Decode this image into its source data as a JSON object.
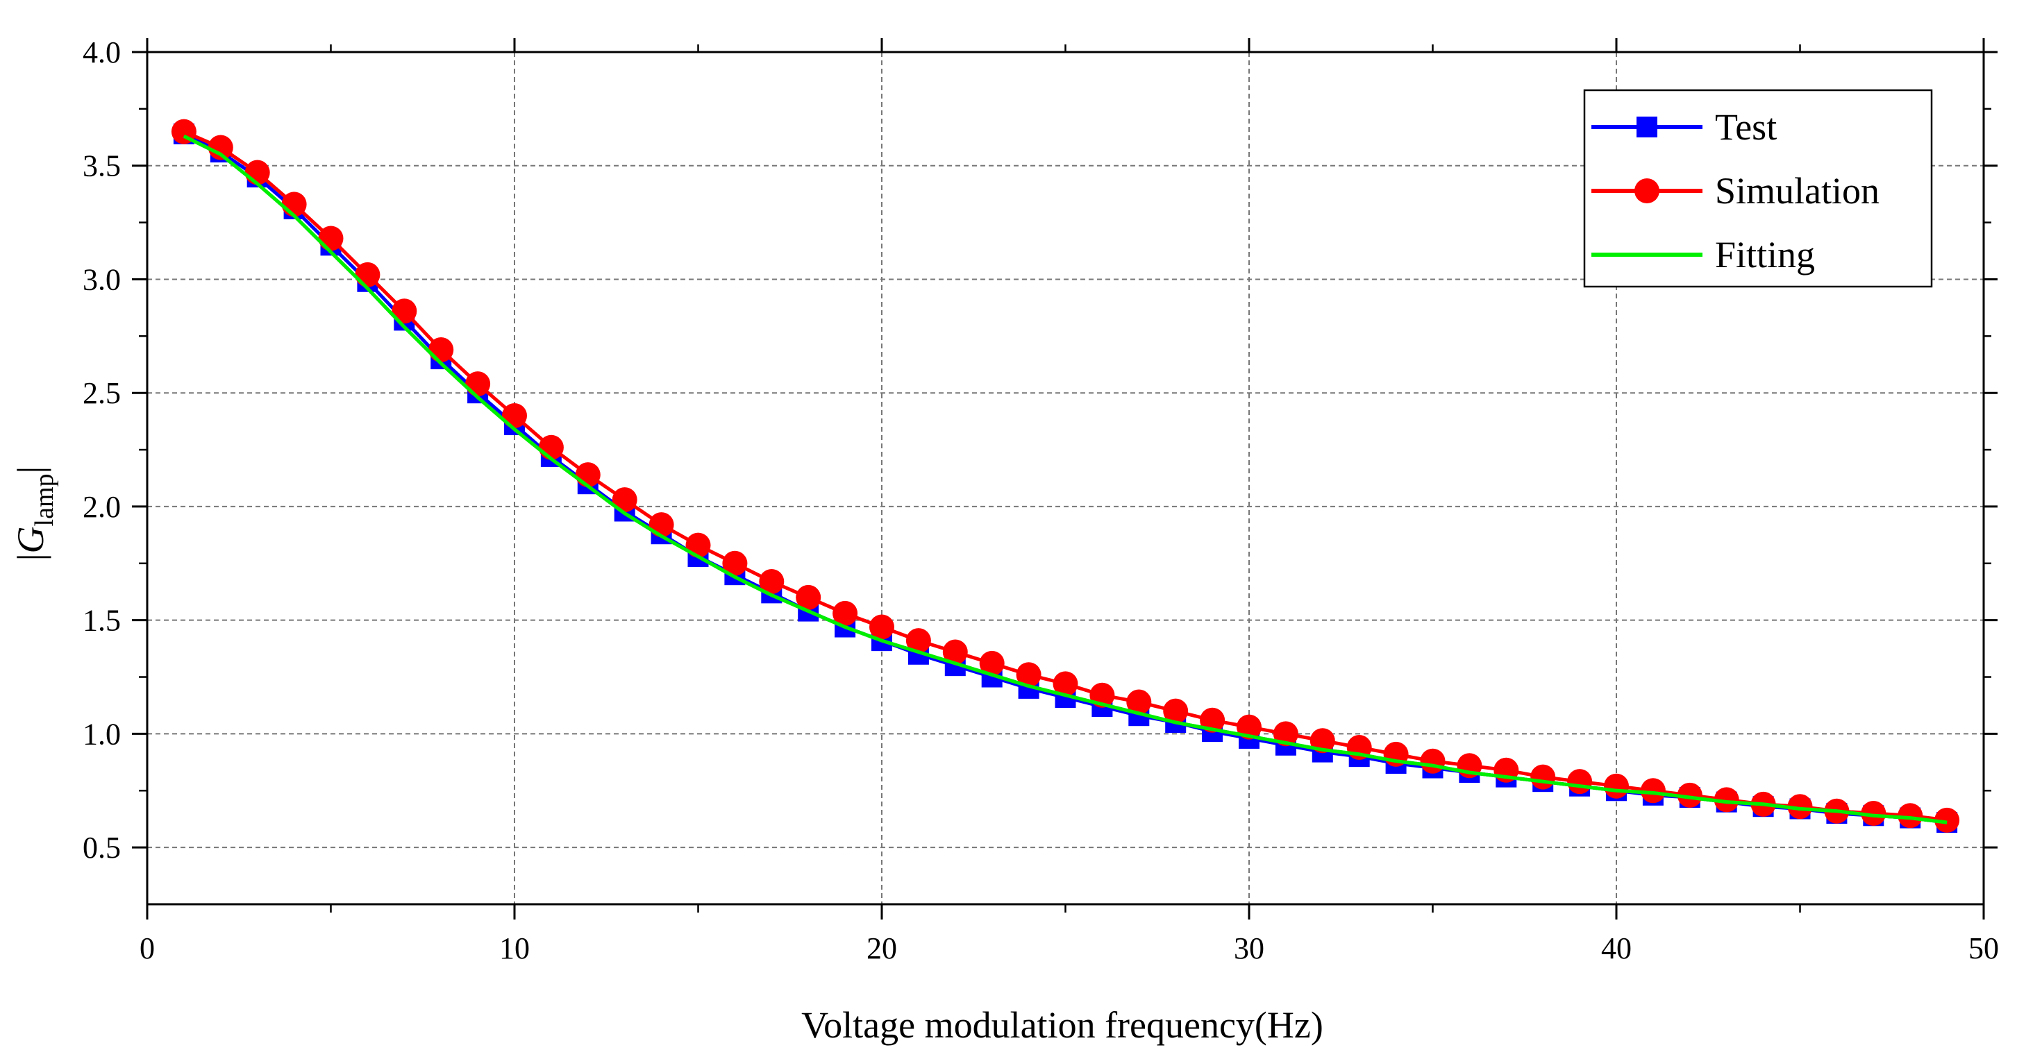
{
  "chart_data": {
    "type": "line",
    "title": "",
    "xlabel": "Voltage modulation frequency(Hz)",
    "ylabel": {
      "prefix": "|",
      "main": "G",
      "subscript": "lamp",
      "suffix": "|"
    },
    "xlim": [
      0,
      50
    ],
    "ylim": [
      0.25,
      4.0
    ],
    "x_ticks": [
      0,
      10,
      20,
      30,
      40,
      50
    ],
    "x_tick_labels": [
      "0",
      "10",
      "20",
      "30",
      "40",
      "50"
    ],
    "y_ticks": [
      0.5,
      1.0,
      1.5,
      2.0,
      2.5,
      3.0,
      3.5,
      4.0
    ],
    "y_tick_labels": [
      "0.5",
      "1.0",
      "1.5",
      "2.0",
      "2.5",
      "3.0",
      "3.5",
      "4.0"
    ],
    "grid": true,
    "legend_position": "top-right",
    "x": [
      1,
      2,
      3,
      4,
      5,
      6,
      7,
      8,
      9,
      10,
      11,
      12,
      13,
      14,
      15,
      16,
      17,
      18,
      19,
      20,
      21,
      22,
      23,
      24,
      25,
      26,
      27,
      28,
      29,
      30,
      31,
      32,
      33,
      34,
      35,
      36,
      37,
      38,
      39,
      40,
      41,
      42,
      43,
      44,
      45,
      46,
      47,
      48,
      49
    ],
    "series": [
      {
        "name": "Test",
        "color": "#0000ff",
        "marker": "square",
        "values": [
          3.64,
          3.56,
          3.45,
          3.31,
          3.15,
          2.99,
          2.82,
          2.65,
          2.5,
          2.36,
          2.22,
          2.1,
          1.98,
          1.88,
          1.78,
          1.7,
          1.62,
          1.54,
          1.47,
          1.41,
          1.35,
          1.3,
          1.25,
          1.2,
          1.16,
          1.12,
          1.08,
          1.05,
          1.01,
          0.98,
          0.95,
          0.92,
          0.9,
          0.87,
          0.85,
          0.83,
          0.81,
          0.79,
          0.77,
          0.75,
          0.73,
          0.72,
          0.7,
          0.68,
          0.67,
          0.65,
          0.64,
          0.63,
          0.61
        ]
      },
      {
        "name": "Simulation",
        "color": "#ff0000",
        "marker": "circle",
        "values": [
          3.65,
          3.58,
          3.47,
          3.33,
          3.18,
          3.02,
          2.86,
          2.69,
          2.54,
          2.4,
          2.26,
          2.14,
          2.03,
          1.92,
          1.83,
          1.75,
          1.67,
          1.6,
          1.53,
          1.47,
          1.41,
          1.36,
          1.31,
          1.26,
          1.22,
          1.17,
          1.14,
          1.1,
          1.06,
          1.03,
          1.0,
          0.97,
          0.94,
          0.91,
          0.88,
          0.86,
          0.84,
          0.81,
          0.79,
          0.77,
          0.75,
          0.73,
          0.71,
          0.69,
          0.68,
          0.66,
          0.65,
          0.64,
          0.62
        ]
      },
      {
        "name": "Fitting",
        "color": "#00ee00",
        "marker": "none",
        "values": [
          3.63,
          3.55,
          3.42,
          3.28,
          3.12,
          2.96,
          2.79,
          2.63,
          2.48,
          2.34,
          2.21,
          2.09,
          1.97,
          1.87,
          1.78,
          1.69,
          1.61,
          1.54,
          1.47,
          1.41,
          1.36,
          1.31,
          1.26,
          1.21,
          1.17,
          1.13,
          1.09,
          1.05,
          1.02,
          0.99,
          0.96,
          0.93,
          0.91,
          0.88,
          0.86,
          0.83,
          0.81,
          0.79,
          0.77,
          0.75,
          0.74,
          0.72,
          0.7,
          0.69,
          0.67,
          0.66,
          0.64,
          0.63,
          0.61
        ]
      }
    ]
  }
}
